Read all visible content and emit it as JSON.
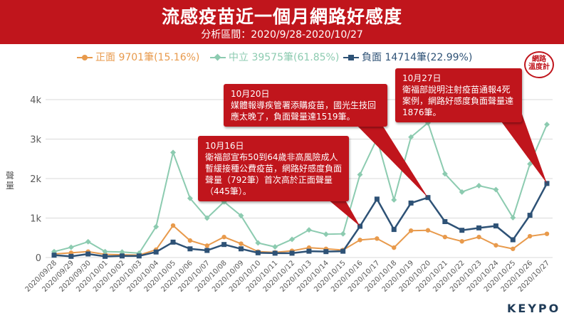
{
  "header": {
    "title": "流感疫苗近一個月網路好感度",
    "subtitle": "分析區間：2020/9/28-2020/10/27"
  },
  "legend": [
    {
      "label": "正面 9701筆(15.16%)",
      "color": "#e89a4c"
    },
    {
      "label": "中立 39575筆(61.85%)",
      "color": "#8ccbb0"
    },
    {
      "label": "負面 14714筆(22.99%)",
      "color": "#2e5276"
    }
  ],
  "badge": {
    "line1": "網路",
    "line2": "溫度計"
  },
  "watermark": "KEYPO",
  "callouts": [
    {
      "date": "10月16日",
      "text": "衛福部宣布50到64歲非高風險成人暫緩接種公費疫苗，網路好感度負面聲量（792筆）首次高於正面聲量（445筆）。"
    },
    {
      "date": "10月20日",
      "text": "媒體報導疾管署添購疫苗，國光生技回應太晚了，負面聲量達1519筆。"
    },
    {
      "date": "10月27日",
      "text": "衛福部說明注射疫苗通報4死案例，網路好感度負面聲量達1876筆。"
    }
  ],
  "chart_data": {
    "type": "line",
    "title": "流感疫苗近一個月網路好感度",
    "ylabel": "聲量",
    "ylim": [
      0,
      4000
    ],
    "yticks": [
      0,
      1000,
      2000,
      3000,
      4000
    ],
    "ytick_labels": [
      "0",
      "1k",
      "2k",
      "3k",
      "4k"
    ],
    "categories": [
      "2020/09/28",
      "2020/09/29",
      "2020/09/30",
      "2020/10/01",
      "2020/10/02",
      "2020/10/03",
      "2020/10/04",
      "2020/10/05",
      "2020/10/06",
      "2020/10/07",
      "2020/10/08",
      "2020/10/09",
      "2020/10/10",
      "2020/10/11",
      "2020/10/12",
      "2020/10/13",
      "2020/10/14",
      "2020/10/15",
      "2020/10/16",
      "2020/10/17",
      "2020/10/18",
      "2020/10/19",
      "2020/10/20",
      "2020/10/21",
      "2020/10/22",
      "2020/10/23",
      "2020/10/24",
      "2020/10/25",
      "2020/10/26",
      "2020/10/27"
    ],
    "series": [
      {
        "name": "正面",
        "color": "#e89a4c",
        "values": [
          90,
          120,
          150,
          80,
          70,
          60,
          200,
          810,
          430,
          300,
          520,
          350,
          150,
          130,
          170,
          250,
          220,
          190,
          445,
          480,
          250,
          680,
          690,
          520,
          410,
          520,
          310,
          220,
          540,
          600
        ]
      },
      {
        "name": "中立",
        "color": "#8ccbb0",
        "values": [
          150,
          260,
          400,
          150,
          140,
          110,
          780,
          2660,
          1500,
          1000,
          1410,
          1060,
          370,
          270,
          460,
          700,
          590,
          600,
          2100,
          3010,
          1460,
          3050,
          3410,
          2120,
          1660,
          1820,
          1720,
          1010,
          2370,
          3370
        ]
      },
      {
        "name": "負面",
        "color": "#2e5276",
        "values": [
          60,
          30,
          90,
          30,
          40,
          40,
          140,
          390,
          220,
          180,
          330,
          220,
          120,
          110,
          110,
          160,
          150,
          160,
          792,
          1480,
          710,
          1380,
          1519,
          910,
          690,
          750,
          800,
          450,
          1070,
          1876
        ]
      }
    ]
  }
}
